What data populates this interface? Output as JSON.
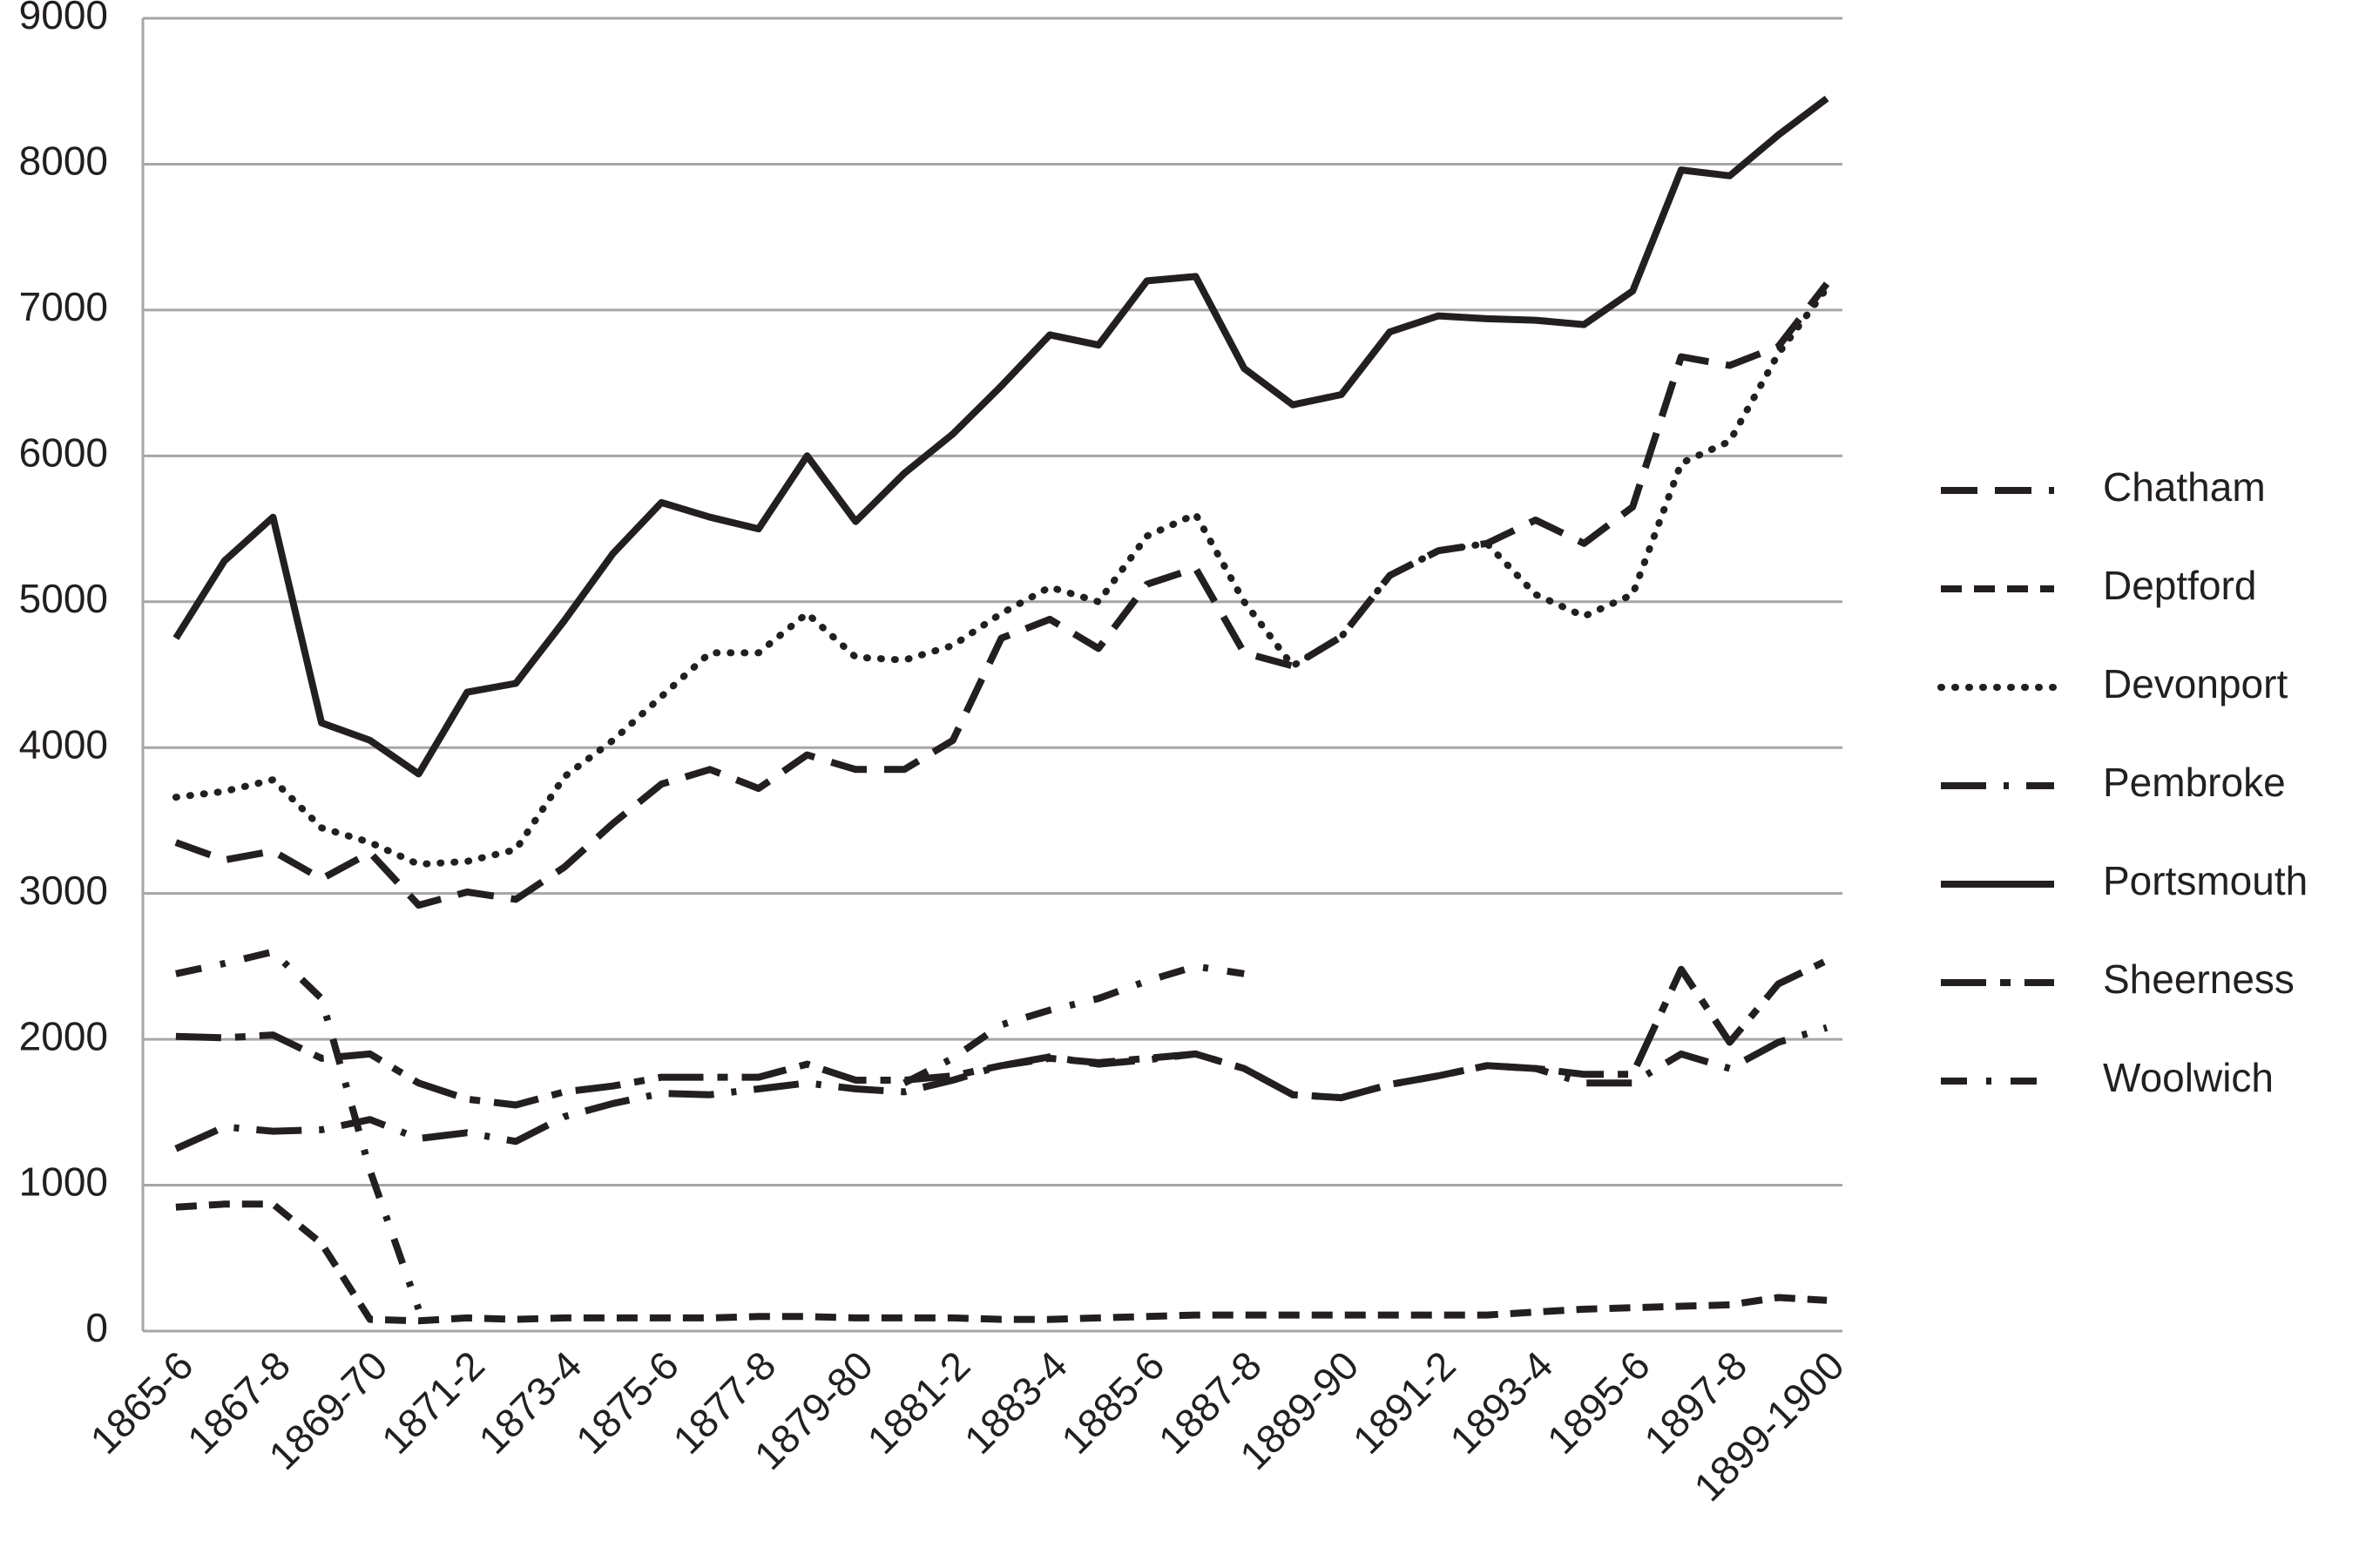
{
  "chart_data": {
    "type": "line",
    "categories": [
      "1865-6",
      null,
      "1867-8",
      null,
      "1869-70",
      null,
      "1871-2",
      null,
      "1873-4",
      null,
      "1875-6",
      null,
      "1877-8",
      null,
      "1879-80",
      null,
      "1881-2",
      null,
      "1883-4",
      null,
      "1885-6",
      null,
      "1887-8",
      null,
      "1889-90",
      null,
      "1891-2",
      null,
      "1893-4",
      null,
      "1895-6",
      null,
      "1897-8",
      null,
      "1899-1900"
    ],
    "ylim": [
      0,
      9000
    ],
    "yticks": [
      0,
      1000,
      2000,
      3000,
      4000,
      5000,
      6000,
      7000,
      8000,
      9000
    ],
    "grid": true,
    "legend": "right",
    "series": [
      {
        "name": "Chatham",
        "color": "#231f20",
        "values": [
          3350,
          3230,
          3290,
          3100,
          3280,
          2920,
          3010,
          2960,
          3180,
          3480,
          3750,
          3850,
          3720,
          3950,
          3850,
          3850,
          4050,
          4750,
          4880,
          4680,
          5120,
          5230,
          4650,
          4560,
          4760,
          5180,
          5350,
          5400,
          5560,
          5400,
          5650,
          6680,
          6620,
          6750,
          7180
        ]
      },
      {
        "name": "Deptford",
        "color": "#231f20",
        "values": [
          850,
          870,
          870,
          600,
          80,
          70,
          90,
          80,
          90,
          90,
          90,
          90,
          100,
          100,
          90,
          90,
          90,
          80,
          80,
          90,
          100,
          110,
          110,
          110,
          110,
          110,
          110,
          110,
          130,
          150,
          160,
          170,
          180,
          230,
          210
        ]
      },
      {
        "name": "Devonport",
        "color": "#231f20",
        "values": [
          3660,
          3700,
          3780,
          3450,
          3350,
          3200,
          3220,
          3300,
          3800,
          4050,
          4350,
          4650,
          4650,
          4920,
          4620,
          4600,
          4700,
          4920,
          5100,
          5000,
          5450,
          5600,
          5000,
          4560,
          4760,
          5180,
          5350,
          5400,
          5050,
          4900,
          5050,
          5950,
          6100,
          6700,
          7150
        ]
      },
      {
        "name": "Pembroke",
        "color": "#231f20",
        "values": [
          1250,
          1400,
          1370,
          1380,
          1450,
          1320,
          1360,
          1300,
          1470,
          1560,
          1630,
          1620,
          1660,
          1700,
          1660,
          1640,
          1720,
          1820,
          1880,
          1830,
          1860,
          1900,
          1800,
          1620,
          1600,
          1690,
          1750,
          1820,
          1800,
          1700,
          1700,
          1900,
          1800,
          1980,
          2080
        ]
      },
      {
        "name": "Portsmouth",
        "color": "#231f20",
        "values": [
          4750,
          5280,
          5580,
          4170,
          4050,
          3820,
          4380,
          4440,
          4870,
          5330,
          5680,
          5580,
          5500,
          6000,
          5550,
          5880,
          6150,
          6480,
          6830,
          6760,
          7200,
          7230,
          6600,
          6350,
          6420,
          6850,
          6960,
          6940,
          6930,
          6900,
          7130,
          7960,
          7920,
          8200,
          8450
        ]
      },
      {
        "name": "Sheerness",
        "color": "#231f20",
        "values": [
          2020,
          2010,
          2030,
          1870,
          1900,
          1700,
          1590,
          1550,
          1640,
          1680,
          1740,
          1740,
          1740,
          1830,
          1720,
          1720,
          1750,
          1820,
          1870,
          1840,
          1870,
          1900,
          1800,
          1620,
          1600,
          1690,
          1750,
          1820,
          1800,
          1760,
          1760,
          2480,
          1980,
          2380,
          2540
        ]
      },
      {
        "name": "Woolwich",
        "color": "#231f20",
        "values": [
          2450,
          2520,
          2600,
          2280,
          1100,
          150,
          null,
          null,
          null,
          null,
          null,
          null,
          null,
          null,
          null,
          1700,
          1870,
          2100,
          2200,
          2280,
          2400,
          2500,
          2450,
          null,
          null,
          null,
          null,
          null,
          null,
          null,
          null,
          null,
          null,
          null,
          null
        ]
      }
    ]
  }
}
